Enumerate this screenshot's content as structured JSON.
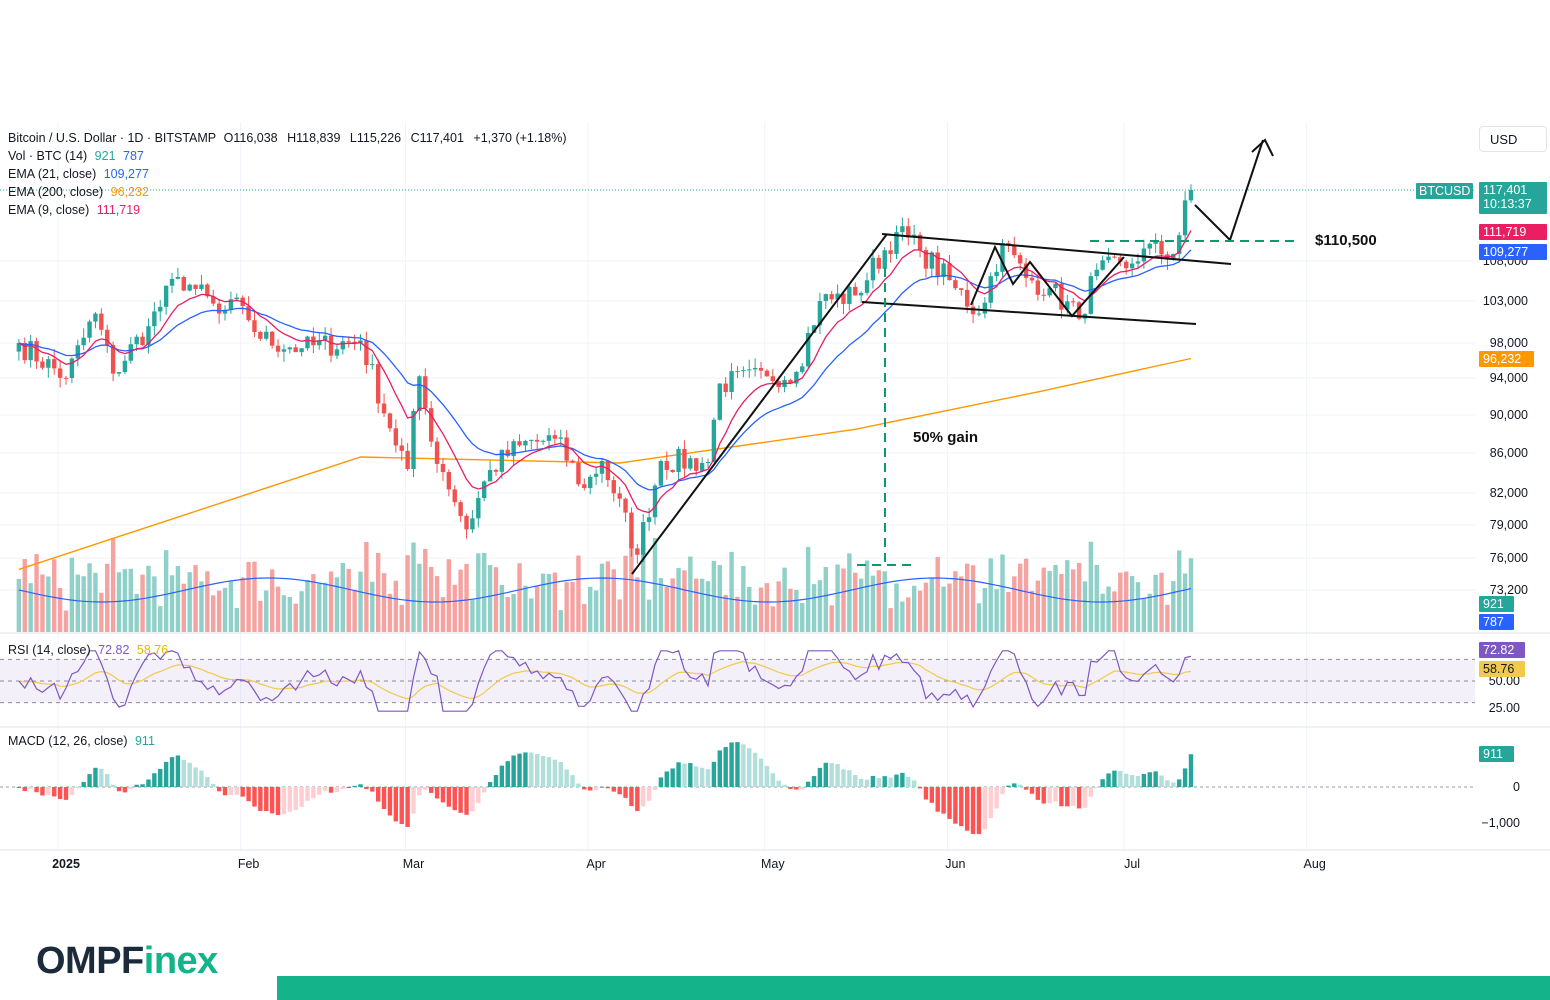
{
  "colors": {
    "up": "#26a69a",
    "down": "#ef5350",
    "up_vol": "#8fd0c8",
    "down_vol": "#f5a3a1",
    "ema9": "#e91e63",
    "ema21": "#2962ff",
    "ema200": "#ff9800",
    "rsi": "#7e57c2",
    "rsi_ma": "#f2c94c",
    "dashed_green": "#0a9a6e",
    "brand": "#14b38a"
  },
  "header": {
    "symbol": "Bitcoin / U.S. Dollar · 1D · BITSTAMP",
    "o_label": "O",
    "o": "116,038",
    "h_label": "H",
    "h": "118,839",
    "l_label": "L",
    "l": "115,226",
    "c_label": "C",
    "c": "117,401",
    "change": "+1,370 (+1.18%)",
    "vol_label": "Vol · BTC (14)",
    "vol_v1": "921",
    "vol_v2": "787",
    "ema21_label": "EMA (21, close)",
    "ema21_v": "109,277",
    "ema200_label": "EMA (200, close)",
    "ema200_v": "96,232",
    "ema9_label": "EMA (9, close)",
    "ema9_v": "111,719"
  },
  "currency_button": "USD",
  "price_tags": {
    "ticker": "BTCUSD",
    "last": "117,401",
    "countdown": "10:13:37",
    "ema9": "111,719",
    "ema21": "109,277",
    "ema200": "96,232",
    "vol1": "921",
    "vol2": "787",
    "rsi": "72.82",
    "rsi_ma": "58.76",
    "macd": "911"
  },
  "indicators": {
    "rsi_label": "RSI (14, close)",
    "rsi_v1": "72.82",
    "rsi_v2": "58.76",
    "macd_label": "MACD (12, 26, close)",
    "macd_v": "911"
  },
  "annotations": {
    "target": "$110,500",
    "gain": "50% gain"
  },
  "logo": {
    "part1": "OMPF",
    "part2": "inex"
  },
  "chart_data": {
    "type": "candlestick",
    "title": "Bitcoin / U.S. Dollar · 1D · BITSTAMP",
    "price_axis": {
      "ticks": [
        73200,
        76000,
        79000,
        82000,
        86000,
        90000,
        94000,
        98000,
        103000,
        108000
      ],
      "labels": [
        "73,200",
        "76,000",
        "79,000",
        "82,000",
        "86,000",
        "90,000",
        "94,000",
        "98,000",
        "103,000",
        "108,000"
      ]
    },
    "x_axis_labels": [
      "2025",
      "Feb",
      "Mar",
      "Apr",
      "May",
      "Jun",
      "Jul",
      "Aug"
    ],
    "rsi_axis": {
      "ticks": [
        25,
        50
      ],
      "labels": [
        "25.00",
        "50.00"
      ],
      "band": [
        30,
        70
      ]
    },
    "macd_axis": {
      "ticks": [
        0,
        -1000
      ],
      "labels": [
        "0",
        "−1,000"
      ]
    },
    "daily_close_waypoints": [
      {
        "date": "2024-12-24",
        "close": 98000
      },
      {
        "date": "2025-01-01",
        "close": 94000
      },
      {
        "date": "2025-01-06",
        "close": 101500
      },
      {
        "date": "2025-01-09",
        "close": 94500
      },
      {
        "date": "2025-01-15",
        "close": 100000
      },
      {
        "date": "2025-01-20",
        "close": 106000
      },
      {
        "date": "2025-01-23",
        "close": 104500
      },
      {
        "date": "2025-01-27",
        "close": 101500
      },
      {
        "date": "2025-01-31",
        "close": 102400
      },
      {
        "date": "2025-02-03",
        "close": 98500
      },
      {
        "date": "2025-02-10",
        "close": 97400
      },
      {
        "date": "2025-02-20",
        "close": 98300
      },
      {
        "date": "2025-02-25",
        "close": 88600
      },
      {
        "date": "2025-02-28",
        "close": 84400
      },
      {
        "date": "2025-03-02",
        "close": 94200
      },
      {
        "date": "2025-03-04",
        "close": 87200
      },
      {
        "date": "2025-03-10",
        "close": 78600
      },
      {
        "date": "2025-03-14",
        "close": 84300
      },
      {
        "date": "2025-03-19",
        "close": 86800
      },
      {
        "date": "2025-03-25",
        "close": 87500
      },
      {
        "date": "2025-03-30",
        "close": 82500
      },
      {
        "date": "2025-04-02",
        "close": 85200
      },
      {
        "date": "2025-04-08",
        "close": 76300
      },
      {
        "date": "2025-04-12",
        "close": 85200
      },
      {
        "date": "2025-04-20",
        "close": 85100
      },
      {
        "date": "2025-04-22",
        "close": 93400
      },
      {
        "date": "2025-04-30",
        "close": 94200
      },
      {
        "date": "2025-05-05",
        "close": 94700
      },
      {
        "date": "2025-05-09",
        "close": 103000
      },
      {
        "date": "2025-05-15",
        "close": 103700
      },
      {
        "date": "2025-05-22",
        "close": 111700
      },
      {
        "date": "2025-05-26",
        "close": 109400
      },
      {
        "date": "2025-06-01",
        "close": 104600
      },
      {
        "date": "2025-06-05",
        "close": 101500
      },
      {
        "date": "2025-06-09",
        "close": 110300
      },
      {
        "date": "2025-06-13",
        "close": 105900
      },
      {
        "date": "2025-06-17",
        "close": 104600
      },
      {
        "date": "2025-06-22",
        "close": 100900
      },
      {
        "date": "2025-06-25",
        "close": 106900
      },
      {
        "date": "2025-06-30",
        "close": 107100
      },
      {
        "date": "2025-07-03",
        "close": 109600
      },
      {
        "date": "2025-07-08",
        "close": 108900
      },
      {
        "date": "2025-07-09",
        "close": 111300
      },
      {
        "date": "2025-07-10",
        "close": 116000
      },
      {
        "date": "2025-07-11",
        "close": 117401
      }
    ],
    "ema9_last": 111719,
    "ema21_last": 109277,
    "ema200_last": 96232,
    "ema200_waypoints": [
      {
        "date": "2024-12-24",
        "value": 75000
      },
      {
        "date": "2025-02-20",
        "value": 85600
      },
      {
        "date": "2025-04-05",
        "value": 85000
      },
      {
        "date": "2025-05-15",
        "value": 88500
      },
      {
        "date": "2025-06-15",
        "value": 92500
      },
      {
        "date": "2025-07-11",
        "value": 96232
      }
    ],
    "rsi_last": 72.82,
    "rsi_ma_last": 58.76,
    "macd_last": 911
  }
}
